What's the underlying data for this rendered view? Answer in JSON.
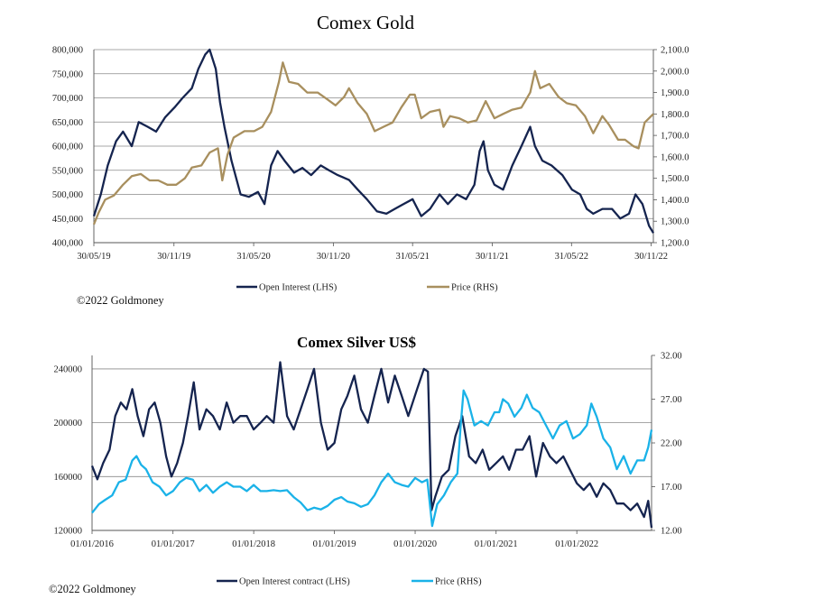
{
  "colors": {
    "navy": "#15244f",
    "gold": "#a88f5e",
    "cyan": "#1ab2e8",
    "grid": "#8a8a8a"
  },
  "chart_data": [
    {
      "type": "line",
      "title": "Comex Gold",
      "x_ticks": [
        "30/05/19",
        "30/11/19",
        "31/05/20",
        "30/11/20",
        "31/05/21",
        "30/11/21",
        "31/05/22",
        "30/11/22"
      ],
      "xlim": [
        "2019-05-30",
        "2022-12-05"
      ],
      "y_left": {
        "lim": [
          400000,
          800000
        ],
        "ticks": [
          "400,000",
          "450,000",
          "500,000",
          "550,000",
          "600,000",
          "650,000",
          "700,000",
          "750,000",
          "800,000"
        ]
      },
      "y_right": {
        "lim": [
          1200,
          2100
        ],
        "ticks": [
          "1,200.0",
          "1,300.0",
          "1,400.0",
          "1,500.0",
          "1,600.0",
          "1,700.0",
          "1,800.0",
          "1,900.0",
          "2,000.0",
          "2,100.0"
        ]
      },
      "grid": true,
      "legend_position": "bottom",
      "series": [
        {
          "name": "Open Interest (LHS)",
          "axis": "left",
          "color": "#15244f",
          "x": [
            "2019-05-30",
            "2019-06-15",
            "2019-07-01",
            "2019-07-20",
            "2019-08-05",
            "2019-08-25",
            "2019-09-10",
            "2019-10-01",
            "2019-10-20",
            "2019-11-10",
            "2019-12-01",
            "2019-12-20",
            "2020-01-10",
            "2020-01-25",
            "2020-02-10",
            "2020-02-20",
            "2020-03-05",
            "2020-03-15",
            "2020-03-25",
            "2020-04-10",
            "2020-05-01",
            "2020-05-20",
            "2020-06-10",
            "2020-06-25",
            "2020-07-10",
            "2020-07-25",
            "2020-08-10",
            "2020-09-01",
            "2020-09-20",
            "2020-10-10",
            "2020-11-01",
            "2020-11-20",
            "2020-12-10",
            "2021-01-05",
            "2021-01-25",
            "2021-02-15",
            "2021-03-10",
            "2021-04-01",
            "2021-04-20",
            "2021-05-10",
            "2021-05-31",
            "2021-06-20",
            "2021-07-10",
            "2021-08-01",
            "2021-08-20",
            "2021-09-10",
            "2021-10-01",
            "2021-10-20",
            "2021-11-01",
            "2021-11-10",
            "2021-11-20",
            "2021-12-05",
            "2021-12-25",
            "2022-01-15",
            "2022-02-05",
            "2022-02-25",
            "2022-03-08",
            "2022-03-25",
            "2022-04-15",
            "2022-05-10",
            "2022-06-01",
            "2022-06-20",
            "2022-07-05",
            "2022-07-20",
            "2022-08-10",
            "2022-09-01",
            "2022-09-20",
            "2022-10-10",
            "2022-10-25",
            "2022-11-10",
            "2022-11-25",
            "2022-12-05"
          ],
          "y": [
            455000,
            500000,
            560000,
            610000,
            630000,
            600000,
            650000,
            640000,
            630000,
            660000,
            680000,
            700000,
            720000,
            760000,
            790000,
            800000,
            760000,
            690000,
            640000,
            570000,
            500000,
            495000,
            505000,
            480000,
            560000,
            590000,
            570000,
            545000,
            555000,
            540000,
            560000,
            550000,
            540000,
            530000,
            510000,
            490000,
            465000,
            460000,
            470000,
            480000,
            490000,
            455000,
            470000,
            500000,
            480000,
            500000,
            490000,
            520000,
            590000,
            610000,
            550000,
            520000,
            510000,
            560000,
            600000,
            640000,
            600000,
            570000,
            560000,
            540000,
            510000,
            500000,
            470000,
            460000,
            470000,
            470000,
            450000,
            460000,
            500000,
            480000,
            435000,
            420000
          ]
        },
        {
          "name": "Price (RHS)",
          "axis": "right",
          "color": "#a88f5e",
          "x": [
            "2019-05-30",
            "2019-06-10",
            "2019-06-25",
            "2019-07-15",
            "2019-08-05",
            "2019-08-25",
            "2019-09-15",
            "2019-10-05",
            "2019-10-25",
            "2019-11-15",
            "2019-12-05",
            "2019-12-25",
            "2020-01-10",
            "2020-02-01",
            "2020-02-20",
            "2020-03-10",
            "2020-03-20",
            "2020-04-01",
            "2020-04-15",
            "2020-05-10",
            "2020-06-01",
            "2020-06-20",
            "2020-07-10",
            "2020-07-28",
            "2020-08-06",
            "2020-08-20",
            "2020-09-10",
            "2020-10-01",
            "2020-10-25",
            "2020-11-15",
            "2020-12-05",
            "2020-12-25",
            "2021-01-05",
            "2021-01-25",
            "2021-02-15",
            "2021-03-05",
            "2021-03-25",
            "2021-04-15",
            "2021-05-05",
            "2021-05-25",
            "2021-06-05",
            "2021-06-20",
            "2021-07-10",
            "2021-08-01",
            "2021-08-10",
            "2021-08-25",
            "2021-09-15",
            "2021-10-05",
            "2021-10-25",
            "2021-11-15",
            "2021-12-05",
            "2021-12-25",
            "2022-01-15",
            "2022-02-05",
            "2022-02-25",
            "2022-03-08",
            "2022-03-20",
            "2022-04-10",
            "2022-05-01",
            "2022-05-20",
            "2022-06-10",
            "2022-07-01",
            "2022-07-20",
            "2022-08-10",
            "2022-08-25",
            "2022-09-15",
            "2022-10-01",
            "2022-10-20",
            "2022-11-01",
            "2022-11-15",
            "2022-11-30",
            "2022-12-05"
          ],
          "y": [
            1285,
            1340,
            1400,
            1420,
            1470,
            1510,
            1520,
            1490,
            1490,
            1470,
            1470,
            1500,
            1550,
            1560,
            1620,
            1640,
            1490,
            1610,
            1690,
            1720,
            1720,
            1740,
            1810,
            1950,
            2040,
            1950,
            1940,
            1900,
            1900,
            1870,
            1840,
            1880,
            1920,
            1850,
            1800,
            1720,
            1740,
            1760,
            1830,
            1890,
            1890,
            1780,
            1810,
            1820,
            1740,
            1790,
            1780,
            1760,
            1770,
            1860,
            1780,
            1800,
            1820,
            1830,
            1900,
            2000,
            1920,
            1940,
            1880,
            1850,
            1840,
            1790,
            1710,
            1790,
            1750,
            1680,
            1680,
            1650,
            1640,
            1760,
            1790,
            1800
          ]
        }
      ]
    },
    {
      "type": "line",
      "title": "Comex Silver US$",
      "x_ticks": [
        "01/01/2016",
        "01/01/2017",
        "01/01/2018",
        "01/01/2019",
        "01/01/2020",
        "01/01/2021",
        "01/01/2022"
      ],
      "xlim": [
        "2016-01-01",
        "2022-12-05"
      ],
      "y_left": {
        "lim": [
          120000,
          250000
        ],
        "ticks": [
          "120000",
          "160000",
          "200000",
          "240000"
        ]
      },
      "y_right": {
        "lim": [
          12,
          32
        ],
        "ticks": [
          "12.00",
          "17.00",
          "22.00",
          "27.00",
          "32.00"
        ]
      },
      "grid": true,
      "legend_position": "bottom",
      "series": [
        {
          "name": "Open Interest contract (LHS)",
          "axis": "left",
          "color": "#15244f",
          "x": [
            "2016-01-01",
            "2016-01-25",
            "2016-02-20",
            "2016-03-20",
            "2016-04-15",
            "2016-05-10",
            "2016-06-05",
            "2016-07-01",
            "2016-07-25",
            "2016-08-20",
            "2016-09-15",
            "2016-10-10",
            "2016-11-05",
            "2016-12-01",
            "2016-12-25",
            "2017-01-20",
            "2017-02-15",
            "2017-03-10",
            "2017-04-05",
            "2017-05-01",
            "2017-06-01",
            "2017-07-01",
            "2017-08-01",
            "2017-09-01",
            "2017-10-01",
            "2017-11-01",
            "2017-12-01",
            "2018-01-01",
            "2018-02-01",
            "2018-03-01",
            "2018-04-01",
            "2018-05-01",
            "2018-06-01",
            "2018-07-01",
            "2018-08-01",
            "2018-09-01",
            "2018-10-01",
            "2018-11-01",
            "2018-12-01",
            "2019-01-01",
            "2019-02-01",
            "2019-03-01",
            "2019-04-01",
            "2019-05-01",
            "2019-06-01",
            "2019-07-01",
            "2019-08-01",
            "2019-09-01",
            "2019-10-01",
            "2019-11-01",
            "2019-12-01",
            "2020-01-10",
            "2020-02-10",
            "2020-02-28",
            "2020-03-15",
            "2020-04-01",
            "2020-05-01",
            "2020-06-01",
            "2020-07-01",
            "2020-08-01",
            "2020-09-01",
            "2020-10-01",
            "2020-11-01",
            "2020-12-01",
            "2021-01-01",
            "2021-02-01",
            "2021-03-01",
            "2021-04-01",
            "2021-05-01",
            "2021-06-01",
            "2021-07-01",
            "2021-08-01",
            "2021-09-01",
            "2021-10-01",
            "2021-11-01",
            "2021-12-01",
            "2022-01-01",
            "2022-02-01",
            "2022-03-01",
            "2022-04-01",
            "2022-05-01",
            "2022-06-01",
            "2022-07-01",
            "2022-08-01",
            "2022-09-01",
            "2022-10-01",
            "2022-11-01",
            "2022-11-20",
            "2022-12-05"
          ],
          "y": [
            168000,
            158000,
            170000,
            180000,
            205000,
            215000,
            210000,
            225000,
            205000,
            190000,
            210000,
            215000,
            200000,
            175000,
            160000,
            170000,
            185000,
            205000,
            230000,
            195000,
            210000,
            205000,
            195000,
            215000,
            200000,
            205000,
            205000,
            195000,
            200000,
            205000,
            200000,
            245000,
            205000,
            195000,
            210000,
            225000,
            240000,
            200000,
            180000,
            185000,
            210000,
            220000,
            235000,
            210000,
            200000,
            220000,
            240000,
            215000,
            235000,
            220000,
            205000,
            225000,
            240000,
            238000,
            135000,
            145000,
            160000,
            165000,
            190000,
            205000,
            175000,
            170000,
            180000,
            165000,
            170000,
            175000,
            165000,
            180000,
            180000,
            190000,
            160000,
            185000,
            175000,
            170000,
            175000,
            165000,
            155000,
            150000,
            155000,
            145000,
            155000,
            150000,
            140000,
            140000,
            135000,
            140000,
            130000,
            142000,
            122000
          ]
        },
        {
          "name": "Price (RHS)",
          "axis": "right",
          "color": "#1ab2e8",
          "x": [
            "2016-01-01",
            "2016-02-01",
            "2016-03-01",
            "2016-04-01",
            "2016-05-01",
            "2016-06-01",
            "2016-07-01",
            "2016-07-20",
            "2016-08-10",
            "2016-09-01",
            "2016-10-01",
            "2016-11-01",
            "2016-12-01",
            "2017-01-01",
            "2017-02-01",
            "2017-03-01",
            "2017-04-01",
            "2017-05-01",
            "2017-06-01",
            "2017-07-01",
            "2017-08-01",
            "2017-09-01",
            "2017-10-01",
            "2017-11-01",
            "2017-12-01",
            "2018-01-01",
            "2018-02-01",
            "2018-03-01",
            "2018-04-01",
            "2018-05-01",
            "2018-06-01",
            "2018-07-01",
            "2018-08-01",
            "2018-09-01",
            "2018-10-01",
            "2018-11-01",
            "2018-12-01",
            "2019-01-01",
            "2019-02-01",
            "2019-03-01",
            "2019-04-01",
            "2019-05-01",
            "2019-06-01",
            "2019-07-01",
            "2019-08-01",
            "2019-09-01",
            "2019-10-01",
            "2019-11-01",
            "2019-12-01",
            "2020-01-01",
            "2020-02-01",
            "2020-02-25",
            "2020-03-18",
            "2020-04-10",
            "2020-05-10",
            "2020-06-10",
            "2020-07-10",
            "2020-07-25",
            "2020-08-07",
            "2020-08-25",
            "2020-09-25",
            "2020-10-25",
            "2020-11-25",
            "2020-12-25",
            "2021-01-15",
            "2021-02-01",
            "2021-02-25",
            "2021-03-25",
            "2021-04-25",
            "2021-05-20",
            "2021-06-15",
            "2021-07-15",
            "2021-08-15",
            "2021-09-15",
            "2021-10-15",
            "2021-11-15",
            "2021-12-15",
            "2022-01-15",
            "2022-02-15",
            "2022-03-08",
            "2022-04-01",
            "2022-05-01",
            "2022-06-01",
            "2022-07-01",
            "2022-08-01",
            "2022-09-01",
            "2022-10-01",
            "2022-11-01",
            "2022-11-20",
            "2022-12-05"
          ],
          "y": [
            14.0,
            15.0,
            15.5,
            16.0,
            17.5,
            17.8,
            20.0,
            20.5,
            19.5,
            19.0,
            17.5,
            17.0,
            16.0,
            16.5,
            17.5,
            18.0,
            17.8,
            16.5,
            17.2,
            16.3,
            17.0,
            17.5,
            17.0,
            17.0,
            16.5,
            17.2,
            16.5,
            16.5,
            16.6,
            16.5,
            16.6,
            15.8,
            15.2,
            14.3,
            14.6,
            14.4,
            14.8,
            15.5,
            15.8,
            15.3,
            15.1,
            14.7,
            15.0,
            16.0,
            17.5,
            18.5,
            17.5,
            17.2,
            17.0,
            18.0,
            17.5,
            17.8,
            12.5,
            15.0,
            16.0,
            17.5,
            18.5,
            24.0,
            28.0,
            27.0,
            24.0,
            24.5,
            24.0,
            25.5,
            25.5,
            27.0,
            26.5,
            25.0,
            26.0,
            27.5,
            26.0,
            25.5,
            24.0,
            22.5,
            24.0,
            24.5,
            22.5,
            23.0,
            24.0,
            26.5,
            25.0,
            22.5,
            21.5,
            19.0,
            20.5,
            18.5,
            20.0,
            20.0,
            21.5,
            23.5
          ]
        }
      ]
    }
  ],
  "copyright_top": "©2022 Goldmoney",
  "copyright_bottom": "©2022 Goldmoney"
}
